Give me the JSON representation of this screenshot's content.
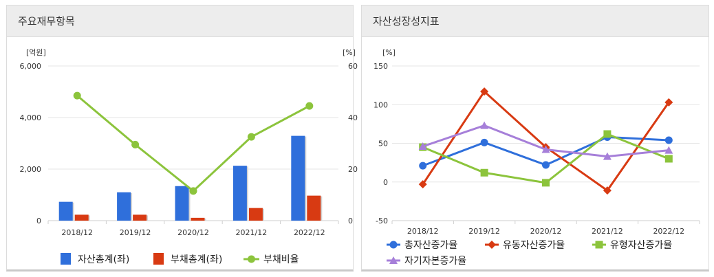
{
  "panels": [
    {
      "title": "주요재무항목",
      "chart_data": {
        "type": "bar",
        "categories": [
          "2018/12",
          "2019/12",
          "2020/12",
          "2021/12",
          "2022/12"
        ],
        "left_unit": "[억원]",
        "right_unit": "[%]",
        "left_ticks": [
          "6,000",
          "4,000",
          "2,000",
          "0"
        ],
        "left_tick_values": [
          6000,
          4000,
          2000,
          0
        ],
        "right_ticks": [
          "60",
          "40",
          "20",
          "0"
        ],
        "right_tick_values": [
          60,
          40,
          20,
          0
        ],
        "ylim_left": [
          0,
          6000
        ],
        "ylim_right": [
          0,
          60
        ],
        "series": [
          {
            "name": "자산총계(좌)",
            "kind": "bar",
            "axis": "left",
            "color": "#2f6fdb",
            "values": [
              730,
              1100,
              1340,
              2130,
              3290
            ]
          },
          {
            "name": "부채총계(좌)",
            "kind": "bar",
            "axis": "left",
            "color": "#d83a12",
            "values": [
              230,
              230,
              110,
              490,
              970
            ]
          },
          {
            "name": "부채비율",
            "kind": "line",
            "axis": "right",
            "color": "#8cc43c",
            "values": [
              48.5,
              29.5,
              11.5,
              32.5,
              44.5
            ]
          }
        ]
      }
    },
    {
      "title": "자산성장성지표",
      "chart_data": {
        "type": "line",
        "categories": [
          "2018/12",
          "2019/12",
          "2020/12",
          "2021/12",
          "2022/12"
        ],
        "left_unit": "[%]",
        "left_ticks": [
          "150",
          "100",
          "50",
          "0",
          "-50"
        ],
        "left_tick_values": [
          150,
          100,
          50,
          0,
          -50
        ],
        "ylim": [
          -50,
          150
        ],
        "series": [
          {
            "name": "총자산증가율",
            "marker": "circle",
            "color": "#2f6fdb",
            "values": [
              21,
              51,
              22,
              58,
              54
            ]
          },
          {
            "name": "유동자산증가율",
            "marker": "diamond",
            "color": "#d83a12",
            "values": [
              -3,
              117,
              45,
              -11,
              103
            ]
          },
          {
            "name": "유형자산증가율",
            "marker": "square",
            "color": "#8cc43c",
            "values": [
              45,
              12,
              -1,
              62,
              30
            ]
          },
          {
            "name": "자기자본증가율",
            "marker": "triangle",
            "color": "#a67fd9",
            "values": [
              46,
              73,
              42,
              33,
              41
            ]
          }
        ]
      }
    }
  ]
}
